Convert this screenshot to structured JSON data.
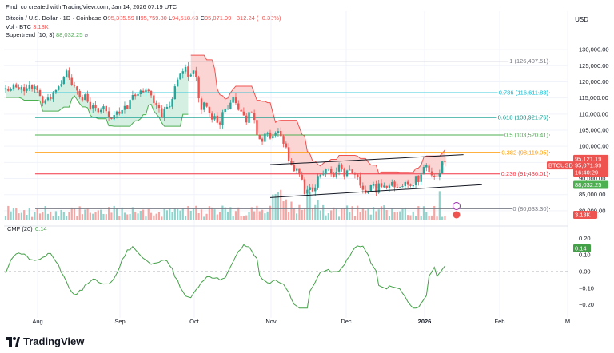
{
  "header": {
    "attribution": "Find_co created with TradingView.com, Jan 14, 2026 07:19 UTC",
    "symbol": "Bitcoin / U.S. Dollar · 1D · Coinbase",
    "ohlc": [
      {
        "k": "O",
        "v": "95,385.59"
      },
      {
        "k": "H",
        "v": "95,759.80"
      },
      {
        "k": "L",
        "v": "94,518.63"
      },
      {
        "k": "C",
        "v": "95,071.99"
      }
    ],
    "change": "−312.24 (−0.33%)",
    "vol_label": "Vol · BTC",
    "vol_value": "3.13K",
    "st_label": "Supertrend (10, 3)",
    "st_value": "88,032.25",
    "currency": "USD"
  },
  "colors": {
    "up": "#26a69a",
    "down": "#ef5350",
    "vol_up": "#8fd3cc",
    "vol_down": "#f5a6a4",
    "st_red_fill": "#fbd4d4",
    "st_green_fill": "#d6efe3",
    "st_red": "#ef5350",
    "st_green": "#4caf50",
    "cmf": "#43a047",
    "grid": "#f0f3fa",
    "text": "#131722",
    "axis_text": "#787b86"
  },
  "cmf_label": "CMF (20)",
  "cmf_value": "0.14",
  "fib_levels": [
    {
      "ratio": "1",
      "price": 126407.51,
      "label": "1 (126,407.51)",
      "color": "#787b86"
    },
    {
      "ratio": "0.786",
      "price": 116611.83,
      "label": "0.786 (116,611.83)",
      "color": "#00bcd4"
    },
    {
      "ratio": "0.618",
      "price": 108921.76,
      "label": "0.618 (108,921.76)",
      "color": "#009688"
    },
    {
      "ratio": "0.5",
      "price": 103520.41,
      "label": "0.5 (103,520.41)",
      "color": "#4caf50"
    },
    {
      "ratio": "0.382",
      "price": 98119.05,
      "label": "0.382 (98,119.05)",
      "color": "#ff9800"
    },
    {
      "ratio": "0.236",
      "price": 91436.01,
      "label": "0.236 (91,436.01)",
      "color": "#f23645"
    },
    {
      "ratio": "0",
      "price": 80633.3,
      "label": "0 (80,633.30)",
      "color": "#787b86"
    }
  ],
  "price_axis": {
    "ticks": [
      130000,
      125000,
      120000,
      115000,
      110000,
      105000,
      100000,
      95000,
      90000,
      85000,
      80000
    ],
    "tick_labels": [
      "130,000.00",
      "125,000.00",
      "120,000.00",
      "115,000.00",
      "110,000.00",
      "105,000.00",
      "100,000.00",
      "95,000.00",
      "90,000.00",
      "85,000.00",
      "80,000.00"
    ]
  },
  "price_tags": [
    {
      "label": "95,121.19",
      "price": 95121.19,
      "color": "#ef5350"
    },
    {
      "label": "BTCUSD",
      "price": 95071.99,
      "color": "#ef5350"
    },
    {
      "label": "95,071.99",
      "price": 95071.99,
      "color": "#ef5350"
    },
    {
      "label": "16:40:29",
      "price": 95071.99,
      "color": "#ef5350"
    },
    {
      "label": "88,032.25",
      "price": 88032.25,
      "color": "#4caf50"
    },
    {
      "label": "3.13K",
      "price": 0,
      "color": "#ef5350"
    }
  ],
  "cmf_axis": {
    "ticks": [
      0.2,
      0.1,
      0.0,
      -0.1,
      -0.2
    ],
    "tick_labels": [
      "0.20",
      "0.10",
      "0.00",
      "−0.10",
      "−0.20"
    ],
    "tag": "0.14"
  },
  "time_axis": [
    "Aug",
    "Sep",
    "Oct",
    "Nov",
    "Dec",
    "2026",
    "Feb",
    "M"
  ],
  "chart_data": {
    "type": "candlestick",
    "x_start": "2025-07-13",
    "x_end": "2026-01-14",
    "ylim": [
      77000,
      133000
    ],
    "closes": [
      118000,
      117200,
      117900,
      119200,
      118300,
      117600,
      118400,
      117100,
      118000,
      119100,
      117900,
      118600,
      117400,
      115600,
      113400,
      114300,
      115100,
      114700,
      116800,
      117400,
      118600,
      119300,
      121400,
      123500,
      121200,
      118900,
      118700,
      117300,
      115400,
      114300,
      116100,
      113800,
      111700,
      112800,
      111900,
      110600,
      111300,
      112400,
      110900,
      108900,
      108500,
      109700,
      110800,
      110100,
      111200,
      112500,
      111600,
      114400,
      115900,
      115600,
      116200,
      117300,
      116800,
      117500,
      117100,
      115800,
      113400,
      112800,
      111900,
      109100,
      111600,
      112200,
      112400,
      114700,
      118600,
      120700,
      122500,
      123300,
      124600,
      121600,
      122200,
      123500,
      121400,
      114900,
      111300,
      113600,
      112300,
      110200,
      108300,
      109400,
      107300,
      106800,
      110600,
      111500,
      111700,
      113500,
      115200,
      113400,
      111300,
      110800,
      109600,
      107400,
      110600,
      110300,
      108200,
      103600,
      102200,
      101400,
      103900,
      104200,
      102400,
      103200,
      104100,
      104700,
      103200,
      100800,
      99700,
      95400,
      94100,
      92300,
      93200,
      91300,
      89700,
      85200,
      86500,
      87300,
      86000,
      87200,
      90800,
      91200,
      91400,
      92900,
      93100,
      91600,
      90400,
      92100,
      94400,
      92800,
      90700,
      92500,
      92700,
      91800,
      91200,
      90600,
      87800,
      86500,
      85400,
      86100,
      87900,
      88200,
      85600,
      88500,
      87300,
      87800,
      87100,
      87800,
      88900,
      87300,
      87200,
      87300,
      87600,
      88900,
      88000,
      87700,
      87900,
      90800,
      88900,
      91200,
      93600,
      94100,
      92100,
      91000,
      90600,
      90600,
      91700,
      95300,
      95100
    ],
    "open": 117600,
    "supertrend_green_until_index": 69,
    "supertrend_red_until_index": 172,
    "volume_scale_max": 45000,
    "channel": {
      "upper": [
        [
          100,
          94300
        ],
        [
          173,
          97400
        ]
      ],
      "lower": [
        [
          100,
          84100
        ],
        [
          180,
          88100
        ]
      ]
    }
  }
}
